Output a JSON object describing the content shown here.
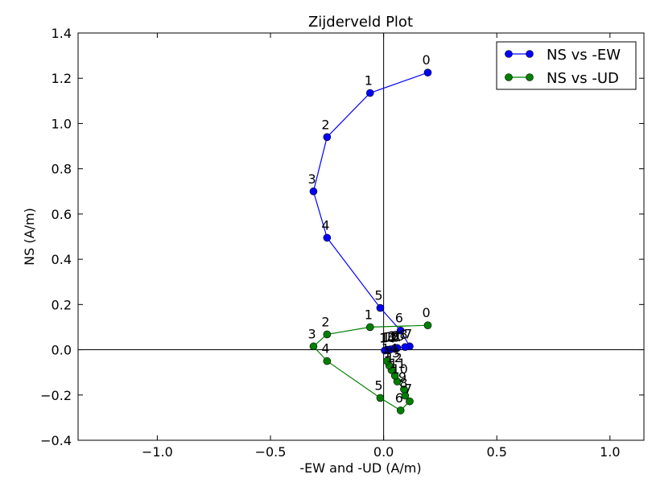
{
  "chart_data": {
    "type": "line",
    "title": "Zijderveld Plot",
    "xlabel": "-EW and -UD (A/m)",
    "ylabel": "NS (A/m)",
    "xlim": [
      -1.35,
      1.15
    ],
    "ylim": [
      -0.4,
      1.4
    ],
    "xticks": [
      -1.0,
      -0.5,
      0.0,
      0.5,
      1.0
    ],
    "xtick_labels": [
      "−1.0",
      "−0.5",
      "0.0",
      "0.5",
      "1.0"
    ],
    "yticks": [
      -0.4,
      -0.2,
      0.0,
      0.2,
      0.4,
      0.6,
      0.8,
      1.0,
      1.2,
      1.4
    ],
    "ytick_labels": [
      "−0.4",
      "−0.2",
      "0.0",
      "0.2",
      "0.4",
      "0.6",
      "0.8",
      "1.0",
      "1.2",
      "1.4"
    ],
    "grid": false,
    "zero_lines": true,
    "legend_position": "top-right",
    "series": [
      {
        "name": "NS vs -EW",
        "color": "#0000ff",
        "points": [
          {
            "x": 0.195,
            "y": 1.225,
            "label": "0"
          },
          {
            "x": -0.06,
            "y": 1.135,
            "label": "1"
          },
          {
            "x": -0.25,
            "y": 0.94,
            "label": "2"
          },
          {
            "x": -0.31,
            "y": 0.7,
            "label": "3"
          },
          {
            "x": -0.25,
            "y": 0.495,
            "label": "4"
          },
          {
            "x": -0.015,
            "y": 0.185,
            "label": "5"
          },
          {
            "x": 0.075,
            "y": 0.085,
            "label": "6"
          },
          {
            "x": 0.115,
            "y": 0.015,
            "label": "7"
          },
          {
            "x": 0.095,
            "y": 0.012,
            "label": "8"
          },
          {
            "x": 0.06,
            "y": 0.008,
            "label": "9"
          },
          {
            "x": 0.045,
            "y": 0.005,
            "label": "10"
          },
          {
            "x": 0.03,
            "y": 0.002,
            "label": "11"
          },
          {
            "x": 0.018,
            "y": 0.0,
            "label": "12"
          },
          {
            "x": 0.01,
            "y": -0.002,
            "label": "13"
          },
          {
            "x": 0.005,
            "y": -0.003,
            "label": "14"
          }
        ]
      },
      {
        "name": "NS vs -UD",
        "color": "#008000",
        "points": [
          {
            "x": 0.195,
            "y": 0.108,
            "label": "0"
          },
          {
            "x": -0.06,
            "y": 0.1,
            "label": "1"
          },
          {
            "x": -0.25,
            "y": 0.068,
            "label": "2"
          },
          {
            "x": -0.31,
            "y": 0.015,
            "label": "3"
          },
          {
            "x": -0.25,
            "y": -0.05,
            "label": "4"
          },
          {
            "x": -0.015,
            "y": -0.213,
            "label": "5"
          },
          {
            "x": 0.075,
            "y": -0.268,
            "label": "6"
          },
          {
            "x": 0.115,
            "y": -0.228,
            "label": "7"
          },
          {
            "x": 0.095,
            "y": -0.203,
            "label": "8"
          },
          {
            "x": 0.09,
            "y": -0.175,
            "label": "9"
          },
          {
            "x": 0.06,
            "y": -0.14,
            "label": "10"
          },
          {
            "x": 0.05,
            "y": -0.115,
            "label": "11"
          },
          {
            "x": 0.035,
            "y": -0.09,
            "label": "12"
          },
          {
            "x": 0.025,
            "y": -0.07,
            "label": "13"
          },
          {
            "x": 0.015,
            "y": -0.05,
            "label": "14"
          }
        ]
      }
    ]
  }
}
